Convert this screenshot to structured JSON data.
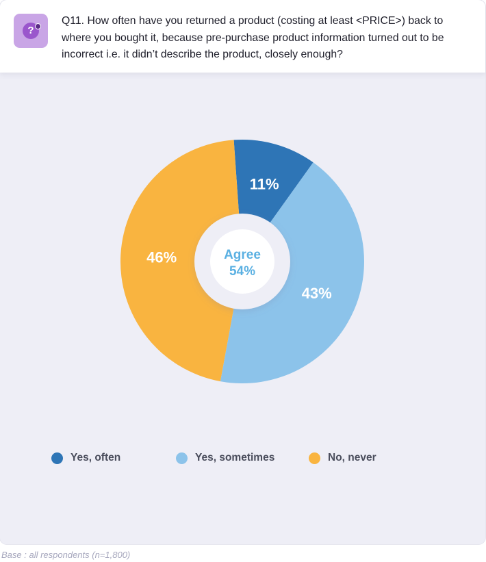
{
  "question": {
    "icon": "question-bubble-icon",
    "text": "Q11. How often have you returned a product (costing at least <PRICE>) back to where you bought it, because pre-purchase product information turned out to be incorrect i.e. it didn’t describe the product, closely enough?"
  },
  "chart_data": {
    "type": "pie",
    "variant": "donut",
    "categories": [
      "Yes, often",
      "Yes, sometimes",
      "No, never"
    ],
    "values": [
      11,
      43,
      46
    ],
    "labels": [
      "11%",
      "43%",
      "46%"
    ],
    "colors": [
      "#2e75b6",
      "#8cc3ea",
      "#f9b440"
    ],
    "center_label": {
      "title": "Agree",
      "value": "54%",
      "color": "#5ab0e2"
    },
    "legend_position": "bottom"
  },
  "legend": [
    {
      "label": "Yes, often",
      "color": "#2e75b6"
    },
    {
      "label": "Yes, sometimes",
      "color": "#8cc3ea"
    },
    {
      "label": "No, never",
      "color": "#f9b440"
    }
  ],
  "base_note": "Base : all respondents (n=1,800)"
}
